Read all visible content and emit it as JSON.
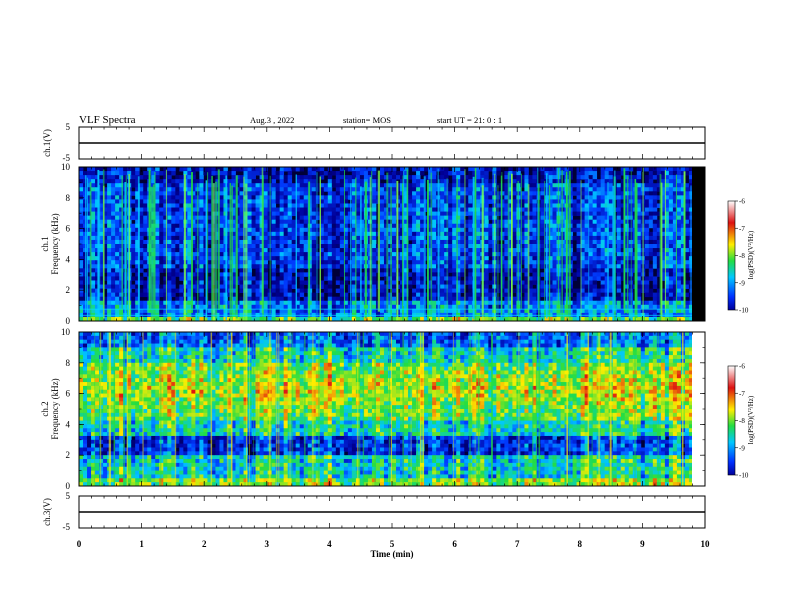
{
  "header": {
    "title": "VLF Spectra",
    "date": "Aug.3  , 2022",
    "station": "station= MOS",
    "start": "start  UT  =   21: 0  : 1"
  },
  "colors": {
    "low": "#00009a",
    "mid": "#00c8ff",
    "green": "#22dd44",
    "yellow": "#ffee00",
    "high": "#dd1111",
    "white": "#ffffff"
  },
  "chart_data": [
    {
      "type": "line",
      "name": "ch1-voltage",
      "ylabel": "ch.1(V)",
      "ylim": [
        -5,
        5
      ],
      "yticks": [
        "5",
        "-5"
      ],
      "x": [
        0,
        10
      ],
      "values": [
        0.0,
        0.0
      ]
    },
    {
      "type": "heatmap",
      "name": "ch1-spectrogram",
      "ylabel": "ch.1\nFrequency  (kHz)",
      "ylim": [
        0,
        10
      ],
      "yticks": [
        "0",
        "2",
        "4",
        "6",
        "8",
        "10"
      ],
      "xlim": [
        0,
        10
      ],
      "colorbar": {
        "label": "log(PSD)(V²/Hz)",
        "ticks": [
          "-6",
          "-7",
          "-8",
          "-9",
          "-10"
        ],
        "range": [
          -10,
          -6
        ]
      }
    },
    {
      "type": "heatmap",
      "name": "ch2-spectrogram",
      "ylabel": "ch.2\nFrequency  (kHz)",
      "ylim": [
        0,
        10
      ],
      "yticks": [
        "0",
        "2",
        "4",
        "6",
        "8",
        "10"
      ],
      "xlim": [
        0,
        10
      ],
      "colorbar": {
        "label": "log(PSD)(V²/Hz)",
        "ticks": [
          "-6",
          "-7",
          "-8",
          "-9",
          "-10"
        ],
        "range": [
          -10,
          -6
        ]
      }
    },
    {
      "type": "line",
      "name": "ch3-voltage",
      "ylabel": "ch.3(V)",
      "ylim": [
        -5,
        5
      ],
      "yticks": [
        "5",
        "-5"
      ],
      "x": [
        0,
        10
      ],
      "values": [
        0.0,
        0.0
      ]
    }
  ],
  "xaxis": {
    "label": "Time  (min)",
    "ticks": [
      "0",
      "1",
      "2",
      "3",
      "4",
      "5",
      "6",
      "7",
      "8",
      "9",
      "10"
    ]
  }
}
